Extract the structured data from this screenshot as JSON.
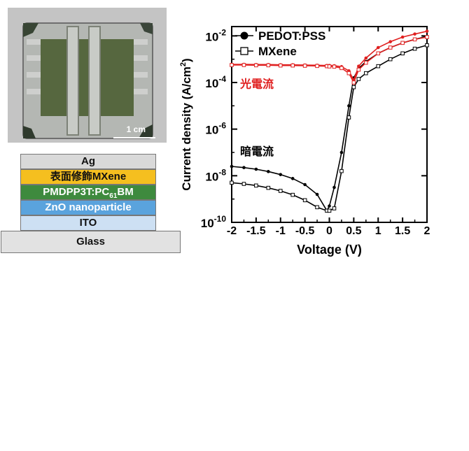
{
  "photo": {
    "scale_label": "1 cm"
  },
  "device_stack": [
    {
      "label": "Ag",
      "color": "#d9d9d9"
    },
    {
      "label": "表面修飾MXene",
      "color": "#f5bf1f"
    },
    {
      "label": "PMDPP3T:PC",
      "sub": "61",
      "tail": "BM",
      "color": "#3e8a3e",
      "text_color": "#ffffff"
    },
    {
      "label": "ZnO nanoparticle",
      "color": "#5aa3dd",
      "text_color": "#ffffff"
    },
    {
      "label": "ITO",
      "color": "#cde0f3"
    },
    {
      "label": "Glass",
      "color": "#e2e2e2"
    }
  ],
  "chart_data": {
    "type": "line",
    "xlabel": "Voltage (V)",
    "ylabel": "Current density (A/cm²)",
    "ylabel_base": "Current density (A/cm",
    "ylabel_sup": "2",
    "ylabel_tail": ")",
    "yscale": "log",
    "xlim": [
      -2,
      2
    ],
    "ylim_exp": [
      -10,
      -1.6
    ],
    "x_ticks": [
      "-2",
      "-1.5",
      "-1",
      "-0.5",
      "0",
      "0.5",
      "1",
      "1.5",
      "2"
    ],
    "y_ticks": [
      {
        "base": "10",
        "exp": "-2",
        "value_exp": -2
      },
      {
        "base": "10",
        "exp": "-4",
        "value_exp": -4
      },
      {
        "base": "10",
        "exp": "-6",
        "value_exp": -6
      },
      {
        "base": "10",
        "exp": "-8",
        "value_exp": -8
      },
      {
        "base": "10",
        "exp": "-10",
        "value_exp": -10
      }
    ],
    "legend": [
      {
        "name": "PEDOT:PSS",
        "marker": "filled-circle"
      },
      {
        "name": "MXene",
        "marker": "open-square"
      }
    ],
    "annotations": [
      {
        "text": "光電流",
        "color": "#e02020"
      },
      {
        "text": "暗電流",
        "color": "#000000"
      }
    ],
    "x": [
      -2.0,
      -1.75,
      -1.5,
      -1.25,
      -1.0,
      -0.75,
      -0.5,
      -0.25,
      -0.05,
      0.0,
      0.1,
      0.25,
      0.4,
      0.5,
      0.6,
      0.75,
      1.0,
      1.25,
      1.5,
      1.75,
      2.0
    ],
    "series": [
      {
        "name": "PEDOT:PSS",
        "condition": "dark",
        "color": "#000000",
        "marker": "filled-circle",
        "log10_values": [
          -7.6,
          -7.65,
          -7.72,
          -7.82,
          -7.95,
          -8.12,
          -8.38,
          -8.8,
          -9.5,
          -9.3,
          -8.5,
          -7.0,
          -5.0,
          -3.8,
          -3.4,
          -3.1,
          -2.75,
          -2.5,
          -2.3,
          -2.15,
          -2.02
        ]
      },
      {
        "name": "MXene",
        "condition": "dark",
        "color": "#000000",
        "marker": "open-square",
        "log10_values": [
          -8.3,
          -8.35,
          -8.42,
          -8.52,
          -8.65,
          -8.82,
          -9.05,
          -9.35,
          -9.5,
          -9.5,
          -9.4,
          -7.8,
          -5.5,
          -4.2,
          -3.85,
          -3.6,
          -3.3,
          -3.0,
          -2.75,
          -2.55,
          -2.4
        ]
      },
      {
        "name": "PEDOT:PSS",
        "condition": "light",
        "color": "#e02020",
        "marker": "filled-circle",
        "log10_values": [
          -3.22,
          -3.22,
          -3.23,
          -3.23,
          -3.24,
          -3.24,
          -3.25,
          -3.26,
          -3.27,
          -3.27,
          -3.28,
          -3.32,
          -3.5,
          -3.9,
          -3.3,
          -2.95,
          -2.5,
          -2.25,
          -2.05,
          -1.92,
          -1.8
        ]
      },
      {
        "name": "MXene",
        "condition": "light",
        "color": "#e02020",
        "marker": "open-square",
        "log10_values": [
          -3.25,
          -3.25,
          -3.26,
          -3.26,
          -3.27,
          -3.27,
          -3.28,
          -3.29,
          -3.3,
          -3.31,
          -3.32,
          -3.38,
          -3.6,
          -4.0,
          -3.45,
          -3.15,
          -2.75,
          -2.5,
          -2.3,
          -2.15,
          -2.05
        ]
      }
    ]
  }
}
